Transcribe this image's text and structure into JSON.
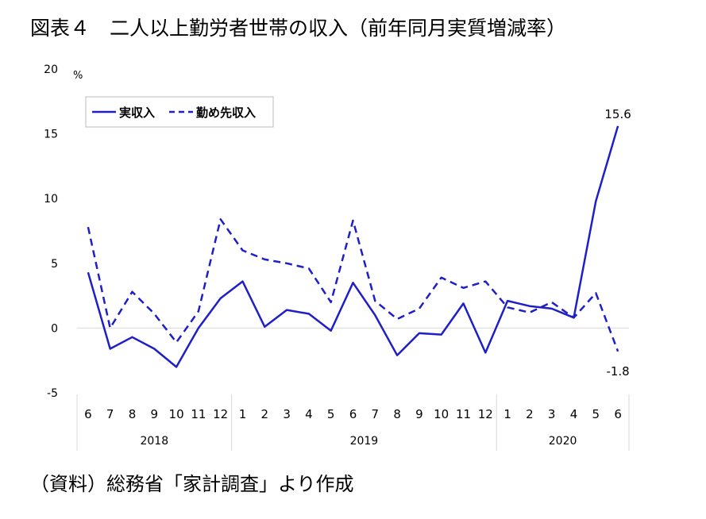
{
  "title": "図表４　二人以上勤労者世帯の収入（前年同月実質増減率）",
  "source": "（資料）総務省「家計調査」より作成",
  "chart_data": {
    "type": "line",
    "y_unit": "%",
    "ylim": [
      -5,
      20
    ],
    "yticks": [
      -5,
      0,
      5,
      10,
      15,
      20
    ],
    "categories": [
      "6",
      "7",
      "8",
      "9",
      "10",
      "11",
      "12",
      "1",
      "2",
      "3",
      "4",
      "5",
      "6",
      "7",
      "8",
      "9",
      "10",
      "11",
      "12",
      "1",
      "2",
      "3",
      "4",
      "5",
      "6"
    ],
    "year_groups": [
      {
        "label": "2018",
        "count": 7
      },
      {
        "label": "2019",
        "count": 12
      },
      {
        "label": "2020",
        "count": 6
      }
    ],
    "legend_position": "top-left",
    "grid": false,
    "series": [
      {
        "name": "実収入",
        "style": "solid",
        "color": "#1f1fc8",
        "values": [
          4.3,
          -1.6,
          -0.7,
          -1.6,
          -3.0,
          0.0,
          2.3,
          3.6,
          0.1,
          1.4,
          1.1,
          -0.2,
          3.5,
          1.0,
          -2.1,
          -0.4,
          -0.5,
          1.9,
          -1.9,
          2.1,
          1.7,
          1.5,
          0.8,
          9.8,
          15.6
        ]
      },
      {
        "name": "勤め先収入",
        "style": "dashed",
        "color": "#1f1fc8",
        "values": [
          7.8,
          0.0,
          2.8,
          1.1,
          -1.1,
          1.3,
          8.4,
          6.0,
          5.3,
          5.0,
          4.6,
          2.0,
          8.3,
          2.1,
          0.7,
          1.5,
          3.9,
          3.1,
          3.6,
          1.6,
          1.2,
          2.0,
          0.8,
          2.7,
          -1.8
        ]
      }
    ],
    "data_labels": [
      {
        "series": 0,
        "index": 24,
        "text": "15.6"
      },
      {
        "series": 1,
        "index": 24,
        "text": "-1.8"
      }
    ]
  }
}
